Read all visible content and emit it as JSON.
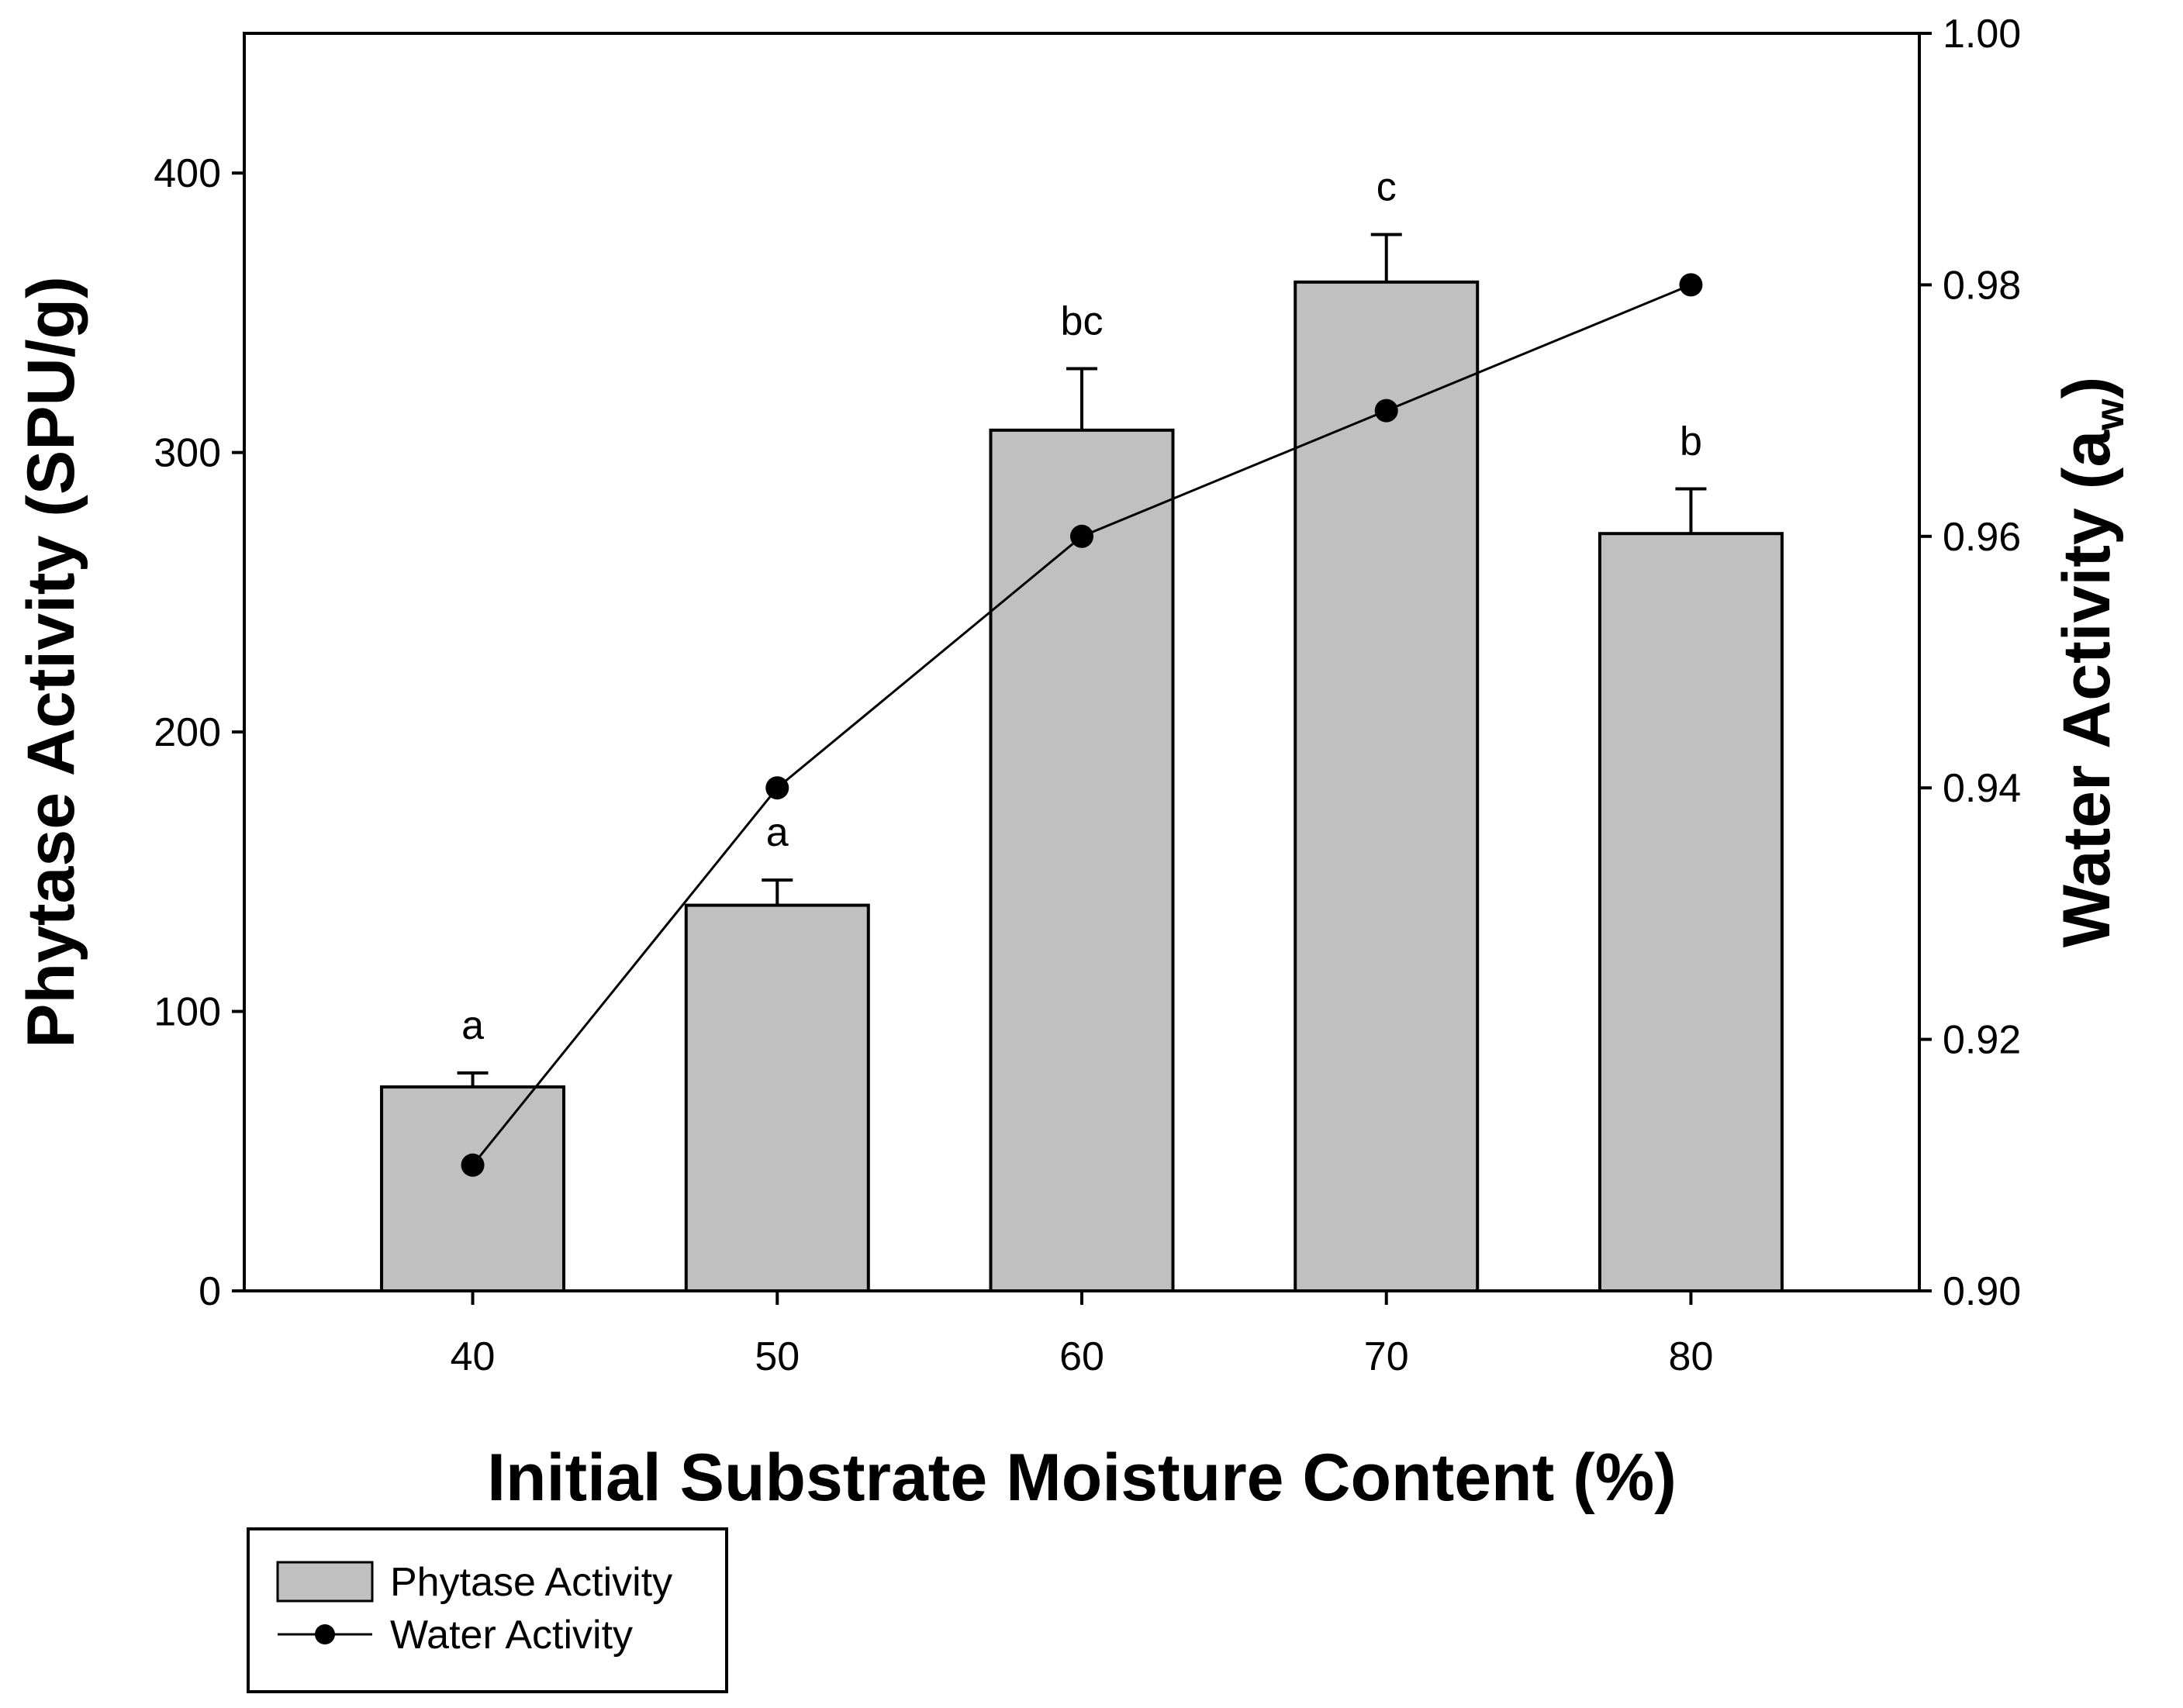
{
  "chart_data": {
    "type": "bar",
    "categories": [
      "40",
      "50",
      "60",
      "70",
      "80"
    ],
    "xlabel": "Initial Substrate Moisture Content (%)",
    "ylabel": "Phytase Activity (SPU/g)",
    "y2label": "Water Activity (a",
    "y2label_sub": "w",
    "y2label_end": ")",
    "ylim": [
      0,
      450
    ],
    "y2lim": [
      0.9,
      1.0
    ],
    "yticks": [
      "0",
      "100",
      "200",
      "300",
      "400"
    ],
    "y2ticks": [
      "0.90",
      "0.92",
      "0.94",
      "0.96",
      "0.98",
      "1.00"
    ],
    "grid": false,
    "legend_position": "bottom-left",
    "series": [
      {
        "name": "Phytase Activity",
        "type": "bar",
        "axis": "left",
        "color": "#c0c0c0",
        "values": [
          73,
          138,
          308,
          361,
          271
        ],
        "errors": [
          5,
          9,
          22,
          17,
          16
        ],
        "labels": [
          "a",
          "a",
          "bc",
          "c",
          "b"
        ]
      },
      {
        "name": "Water Activity",
        "type": "line",
        "axis": "right",
        "color": "#000000",
        "values": [
          0.91,
          0.94,
          0.96,
          0.97,
          0.98
        ]
      }
    ]
  }
}
